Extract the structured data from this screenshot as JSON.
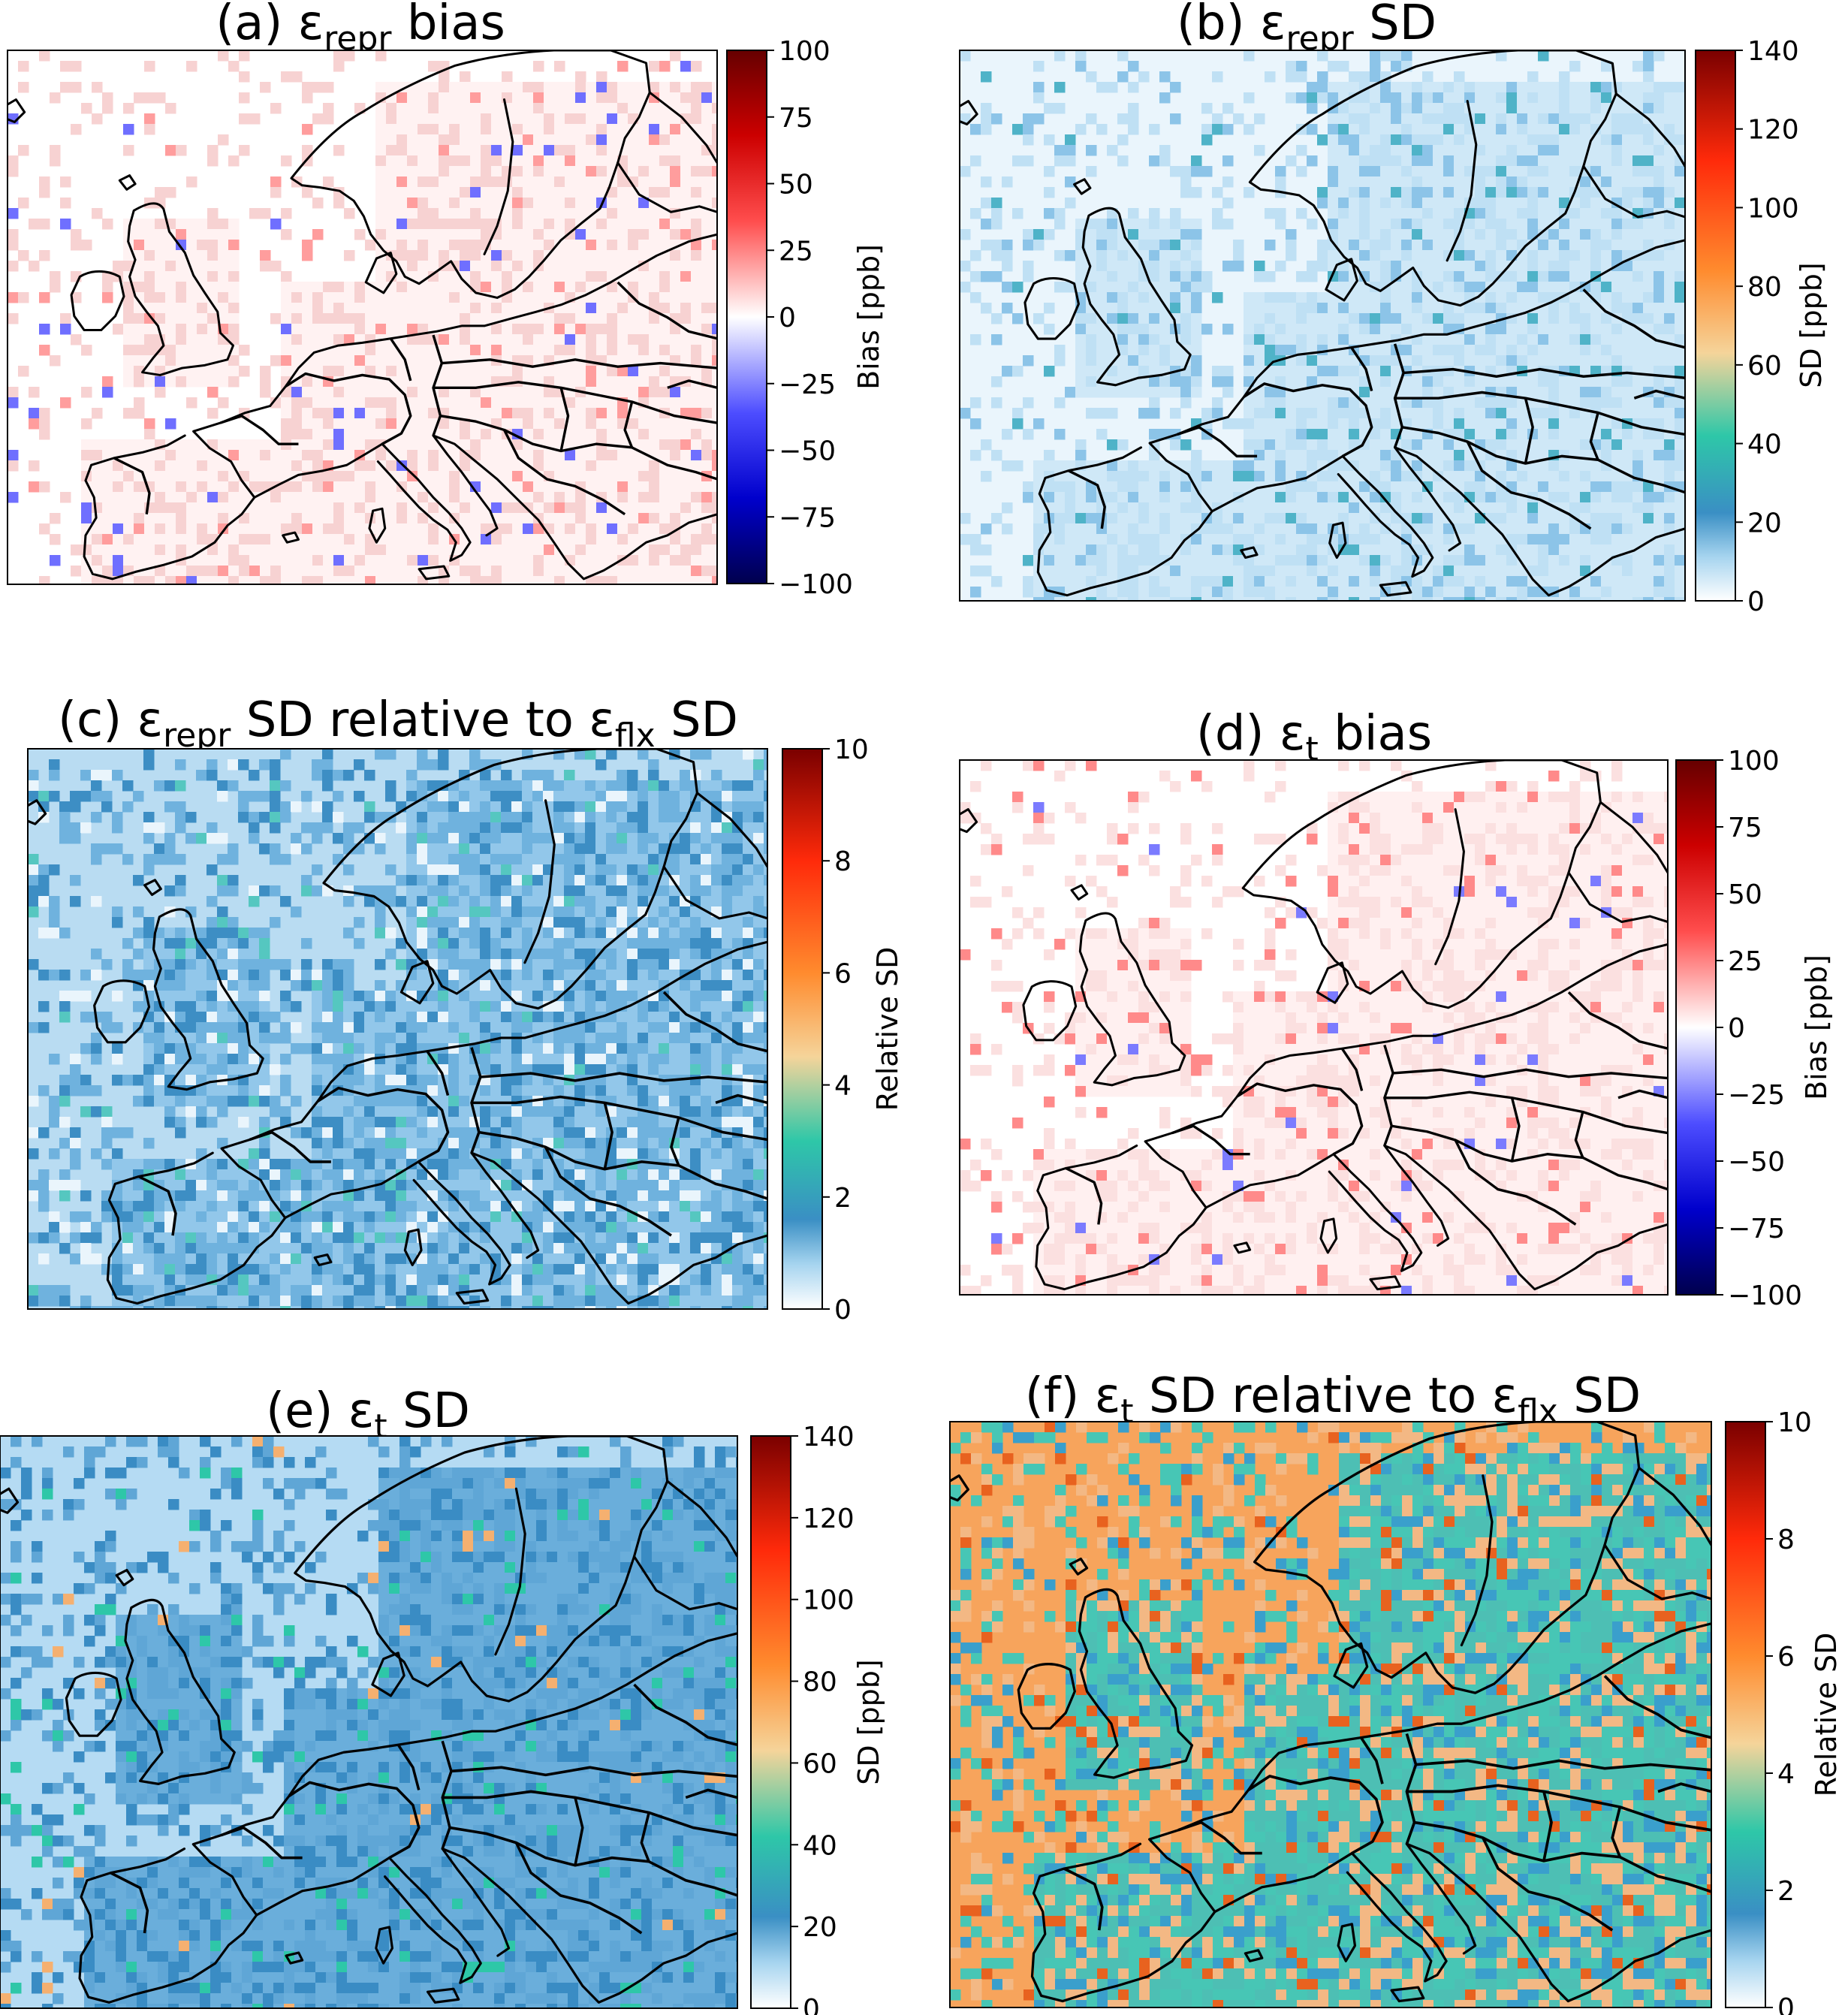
{
  "panels": [
    {
      "id": "a",
      "title": "(a) εrepr bias",
      "prefix": "(a) ε",
      "sub": "repr",
      "suffix": " bias",
      "cmap": "bwr",
      "quantity": "bias",
      "colorbar": {
        "label": "Bias [ppb]",
        "min": -100,
        "max": 100,
        "ticks": [
          "100",
          "75",
          "50",
          "25",
          "0",
          "−25",
          "−50",
          "−75",
          "−100"
        ]
      }
    },
    {
      "id": "b",
      "title": "(b) εrepr SD",
      "prefix": "(b) ε",
      "sub": "repr",
      "suffix": " SD",
      "cmap": "sd",
      "quantity": "sd",
      "colorbar": {
        "label": "SD [ppb]",
        "min": 0,
        "max": 140,
        "ticks": [
          "140",
          "120",
          "100",
          "80",
          "60",
          "40",
          "20",
          "0"
        ]
      }
    },
    {
      "id": "c",
      "title": "(c) εrepr SD relative to εflx SD",
      "prefix": "(c) ε",
      "sub": "repr",
      "mid": " SD relative to ε",
      "sub2": "flx",
      "suffix": " SD",
      "cmap": "sd",
      "quantity": "relative",
      "colorbar": {
        "label": "Relative SD",
        "min": 0,
        "max": 10,
        "ticks": [
          "10",
          "8",
          "6",
          "4",
          "2",
          "0"
        ]
      }
    },
    {
      "id": "d",
      "title": "(d) εt bias",
      "prefix": "(d) ε",
      "sub": "t",
      "suffix": " bias",
      "cmap": "bwr",
      "quantity": "bias",
      "colorbar": {
        "label": "Bias [ppb]",
        "min": -100,
        "max": 100,
        "ticks": [
          "100",
          "75",
          "50",
          "25",
          "0",
          "−25",
          "−50",
          "−75",
          "−100"
        ]
      }
    },
    {
      "id": "e",
      "title": "(e) εt SD",
      "prefix": "(e) ε",
      "sub": "t",
      "suffix": " SD",
      "cmap": "sd",
      "quantity": "sd",
      "colorbar": {
        "label": "SD [ppb]",
        "min": 0,
        "max": 140,
        "ticks": [
          "140",
          "120",
          "100",
          "80",
          "60",
          "40",
          "20",
          "0"
        ]
      }
    },
    {
      "id": "f",
      "title": "(f) εt SD relative to εflx SD",
      "prefix": "(f) ε",
      "sub": "t",
      "mid": " SD relative to ε",
      "sub2": "flx",
      "suffix": " SD",
      "cmap": "sd",
      "quantity": "relative",
      "colorbar": {
        "label": "Relative SD",
        "min": 0,
        "max": 10,
        "ticks": [
          "10",
          "8",
          "6",
          "4",
          "2",
          "0"
        ]
      }
    }
  ],
  "colormaps": {
    "bwr": [
      "#00004d",
      "#0000cc",
      "#4d4dff",
      "#ffffff",
      "#ff4d4d",
      "#cc0000",
      "#660000"
    ],
    "sd": [
      "#ffffff",
      "#a6d4ef",
      "#3a8fc4",
      "#2ec7a8",
      "#f5d49a",
      "#ff8b2e",
      "#ff2a0a",
      "#7a0000"
    ]
  }
}
